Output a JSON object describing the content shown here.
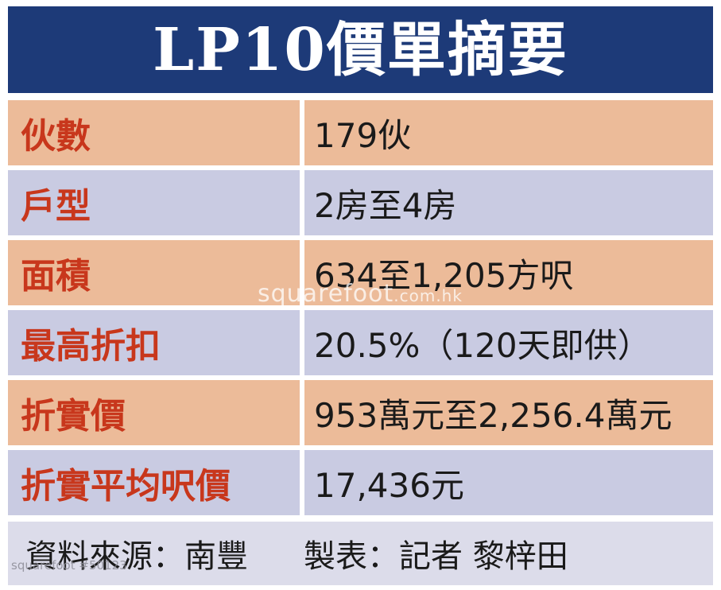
{
  "header": {
    "title": "LP10價單摘要"
  },
  "rows": [
    {
      "label": "伙數",
      "value": "179伙"
    },
    {
      "label": "戶型",
      "value": "2房至4房"
    },
    {
      "label": "面積",
      "value": "634至1,205方呎"
    },
    {
      "label": "最高折扣",
      "value": "20.5%（120天即供）"
    },
    {
      "label": "折實價",
      "value": "953萬元至2,256.4萬元"
    },
    {
      "label": "折實平均呎價",
      "value": "17,436元"
    }
  ],
  "footer": {
    "source": "資料來源：南豐",
    "author": "製表：記者 黎梓田"
  },
  "watermark": {
    "main": "squarefoot",
    "suffix": ".com.hk"
  },
  "reference": "squarefoot #50123",
  "colors": {
    "header_bg": "#1d3a78",
    "row_peach": "#ecbb99",
    "row_lavender": "#c9cbe2",
    "label_red": "#c8371c",
    "footer_bg": "#dcdcea"
  }
}
